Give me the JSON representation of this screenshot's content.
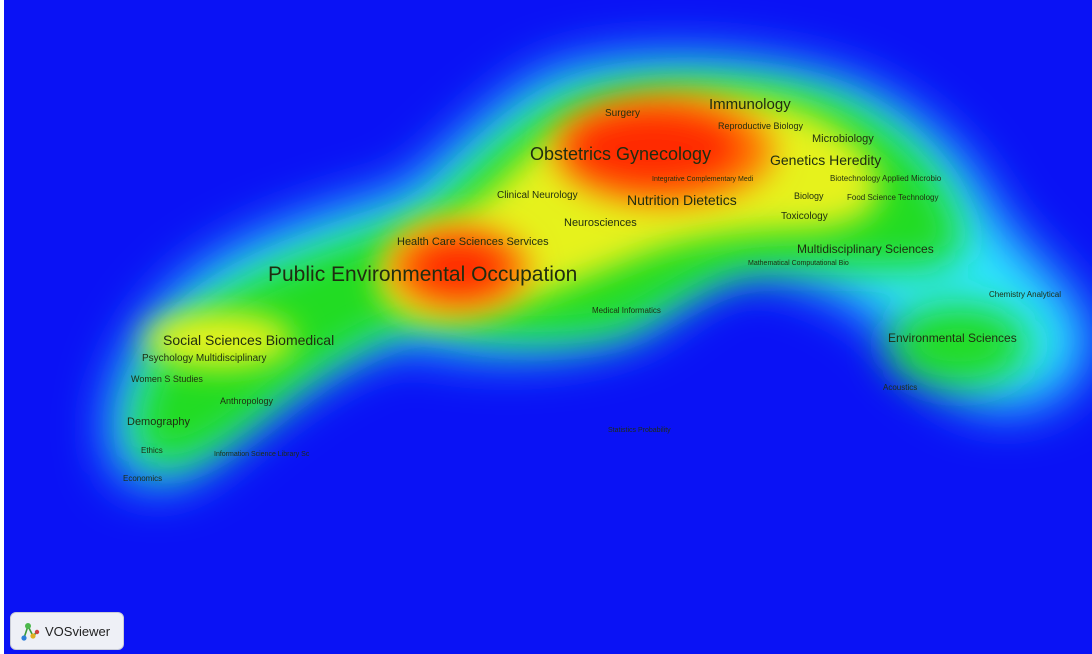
{
  "app": {
    "name": "VOSviewer",
    "logo_icon": "vosviewer-logo-icon"
  },
  "visualization": {
    "type": "density-visualization",
    "palette": {
      "background": "#0a12f5",
      "low": "#00ffff",
      "mid": "#00e000",
      "high": "#ffff00",
      "peak": "#ff0000"
    }
  },
  "terms": [
    {
      "label": "Public Environmental Occupation",
      "weight": 1.0
    },
    {
      "label": "Obstetrics Gynecology",
      "weight": 0.7
    },
    {
      "label": "Immunology",
      "weight": 0.55
    },
    {
      "label": "Genetics Heredity",
      "weight": 0.5
    },
    {
      "label": "Nutrition Dietetics",
      "weight": 0.5
    },
    {
      "label": "Social Sciences Biomedical",
      "weight": 0.5
    },
    {
      "label": "Multidisciplinary Sciences",
      "weight": 0.4
    },
    {
      "label": "Environmental Sciences",
      "weight": 0.4
    },
    {
      "label": "Microbiology",
      "weight": 0.35
    },
    {
      "label": "Health Care Sciences Services",
      "weight": 0.35
    },
    {
      "label": "Neurosciences",
      "weight": 0.33
    },
    {
      "label": "Clinical Neurology",
      "weight": 0.3
    },
    {
      "label": "Surgery",
      "weight": 0.28
    },
    {
      "label": "Reproductive Biology",
      "weight": 0.28
    },
    {
      "label": "Toxicology",
      "weight": 0.28
    },
    {
      "label": "Biology",
      "weight": 0.26
    },
    {
      "label": "Psychology Multidisciplinary",
      "weight": 0.3
    },
    {
      "label": "Women S Studies",
      "weight": 0.26
    },
    {
      "label": "Anthropology",
      "weight": 0.26
    },
    {
      "label": "Demography",
      "weight": 0.3
    },
    {
      "label": "Ethics",
      "weight": 0.2
    },
    {
      "label": "Economics",
      "weight": 0.2
    },
    {
      "label": "Information Science Library Sc",
      "weight": 0.2
    },
    {
      "label": "Integrative Complementary Medi",
      "weight": 0.2
    },
    {
      "label": "Biotechnology Applied Microbio",
      "weight": 0.22
    },
    {
      "label": "Food Science Technology",
      "weight": 0.22
    },
    {
      "label": "Mathematical Computational Bio",
      "weight": 0.18
    },
    {
      "label": "Medical Informatics",
      "weight": 0.2
    },
    {
      "label": "Chemistry Analytical",
      "weight": 0.2
    },
    {
      "label": "Acoustics",
      "weight": 0.18
    },
    {
      "label": "Statistics Probability",
      "weight": 0.18
    }
  ]
}
